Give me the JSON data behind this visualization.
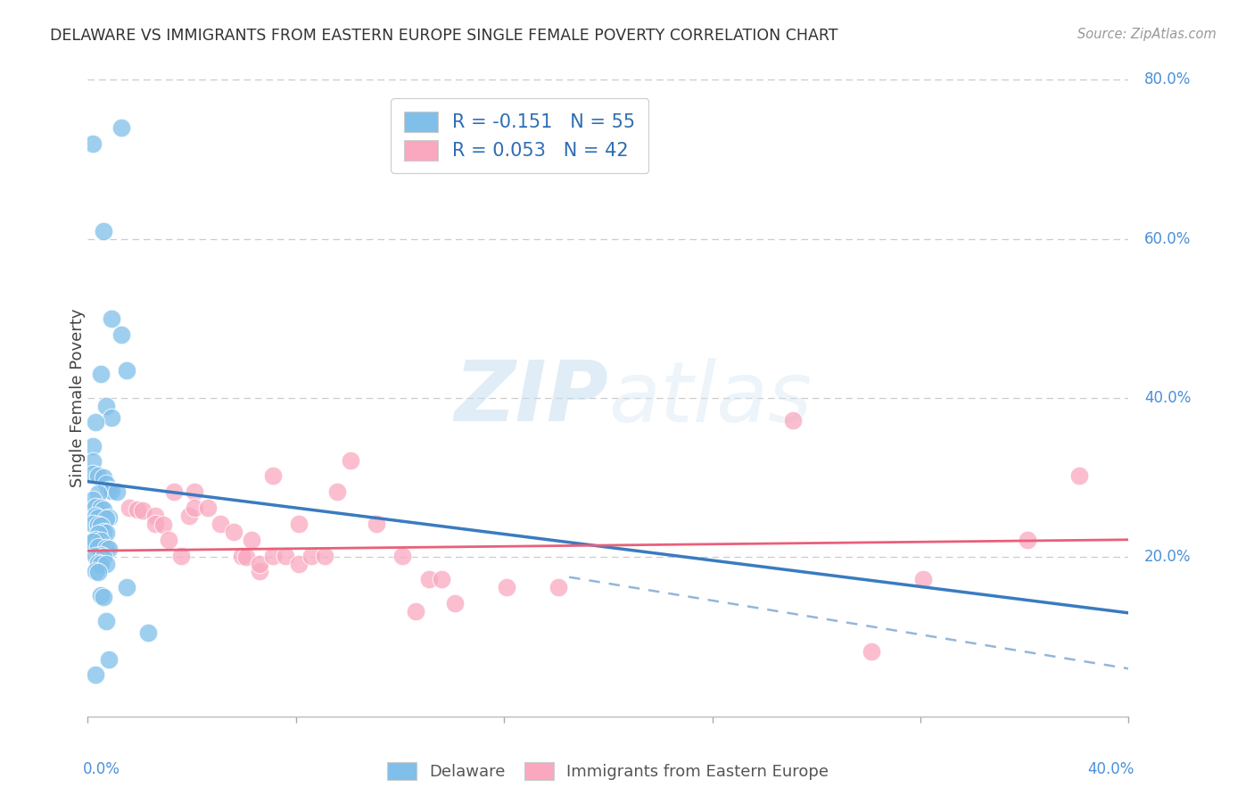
{
  "title": "DELAWARE VS IMMIGRANTS FROM EASTERN EUROPE SINGLE FEMALE POVERTY CORRELATION CHART",
  "source": "Source: ZipAtlas.com",
  "ylabel": "Single Female Poverty",
  "legend1_label": "R = -0.151   N = 55",
  "legend2_label": "R = 0.053   N = 42",
  "legend_label1": "Delaware",
  "legend_label2": "Immigrants from Eastern Europe",
  "color_blue": "#7fbfea",
  "color_pink": "#f9a8c0",
  "color_blue_line": "#3a7bbf",
  "color_pink_line": "#e8607a",
  "color_dashed": "#b0c4d8",
  "xlim": [
    0.0,
    0.4
  ],
  "ylim": [
    0.0,
    0.8
  ],
  "blue_scatter": [
    [
      0.002,
      0.72
    ],
    [
      0.013,
      0.74
    ],
    [
      0.006,
      0.61
    ],
    [
      0.009,
      0.5
    ],
    [
      0.013,
      0.48
    ],
    [
      0.005,
      0.43
    ],
    [
      0.015,
      0.435
    ],
    [
      0.007,
      0.39
    ],
    [
      0.009,
      0.375
    ],
    [
      0.003,
      0.37
    ],
    [
      0.002,
      0.34
    ],
    [
      0.002,
      0.32
    ],
    [
      0.002,
      0.305
    ],
    [
      0.004,
      0.302
    ],
    [
      0.006,
      0.3
    ],
    [
      0.007,
      0.292
    ],
    [
      0.008,
      0.285
    ],
    [
      0.009,
      0.283
    ],
    [
      0.011,
      0.282
    ],
    [
      0.004,
      0.28
    ],
    [
      0.002,
      0.272
    ],
    [
      0.003,
      0.263
    ],
    [
      0.005,
      0.262
    ],
    [
      0.006,
      0.26
    ],
    [
      0.003,
      0.252
    ],
    [
      0.004,
      0.25
    ],
    [
      0.008,
      0.25
    ],
    [
      0.007,
      0.249
    ],
    [
      0.002,
      0.242
    ],
    [
      0.004,
      0.241
    ],
    [
      0.005,
      0.24
    ],
    [
      0.006,
      0.232
    ],
    [
      0.007,
      0.231
    ],
    [
      0.004,
      0.23
    ],
    [
      0.003,
      0.222
    ],
    [
      0.005,
      0.221
    ],
    [
      0.002,
      0.22
    ],
    [
      0.004,
      0.213
    ],
    [
      0.007,
      0.212
    ],
    [
      0.008,
      0.211
    ],
    [
      0.005,
      0.203
    ],
    [
      0.003,
      0.202
    ],
    [
      0.006,
      0.201
    ],
    [
      0.004,
      0.193
    ],
    [
      0.005,
      0.192
    ],
    [
      0.007,
      0.191
    ],
    [
      0.003,
      0.182
    ],
    [
      0.004,
      0.181
    ],
    [
      0.005,
      0.152
    ],
    [
      0.006,
      0.15
    ],
    [
      0.007,
      0.12
    ],
    [
      0.008,
      0.072
    ],
    [
      0.003,
      0.052
    ],
    [
      0.015,
      0.162
    ],
    [
      0.023,
      0.105
    ]
  ],
  "pink_scatter": [
    [
      0.016,
      0.262
    ],
    [
      0.019,
      0.26
    ],
    [
      0.021,
      0.259
    ],
    [
      0.026,
      0.252
    ],
    [
      0.026,
      0.242
    ],
    [
      0.029,
      0.241
    ],
    [
      0.033,
      0.282
    ],
    [
      0.031,
      0.222
    ],
    [
      0.036,
      0.202
    ],
    [
      0.039,
      0.252
    ],
    [
      0.041,
      0.282
    ],
    [
      0.041,
      0.262
    ],
    [
      0.046,
      0.262
    ],
    [
      0.051,
      0.242
    ],
    [
      0.056,
      0.232
    ],
    [
      0.059,
      0.202
    ],
    [
      0.061,
      0.201
    ],
    [
      0.063,
      0.222
    ],
    [
      0.066,
      0.182
    ],
    [
      0.066,
      0.192
    ],
    [
      0.071,
      0.302
    ],
    [
      0.071,
      0.202
    ],
    [
      0.076,
      0.202
    ],
    [
      0.081,
      0.192
    ],
    [
      0.081,
      0.242
    ],
    [
      0.086,
      0.202
    ],
    [
      0.091,
      0.202
    ],
    [
      0.096,
      0.282
    ],
    [
      0.101,
      0.322
    ],
    [
      0.111,
      0.242
    ],
    [
      0.121,
      0.202
    ],
    [
      0.126,
      0.132
    ],
    [
      0.131,
      0.172
    ],
    [
      0.136,
      0.172
    ],
    [
      0.141,
      0.142
    ],
    [
      0.161,
      0.162
    ],
    [
      0.181,
      0.162
    ],
    [
      0.271,
      0.372
    ],
    [
      0.301,
      0.082
    ],
    [
      0.321,
      0.172
    ],
    [
      0.361,
      0.222
    ],
    [
      0.381,
      0.302
    ]
  ],
  "blue_line_x": [
    0.0,
    0.4
  ],
  "blue_line_y": [
    0.295,
    0.13
  ],
  "pink_line_x": [
    0.0,
    0.4
  ],
  "pink_line_y": [
    0.208,
    0.222
  ],
  "dashed_line_x": [
    0.185,
    0.4
  ],
  "dashed_line_y": [
    0.175,
    0.06
  ]
}
